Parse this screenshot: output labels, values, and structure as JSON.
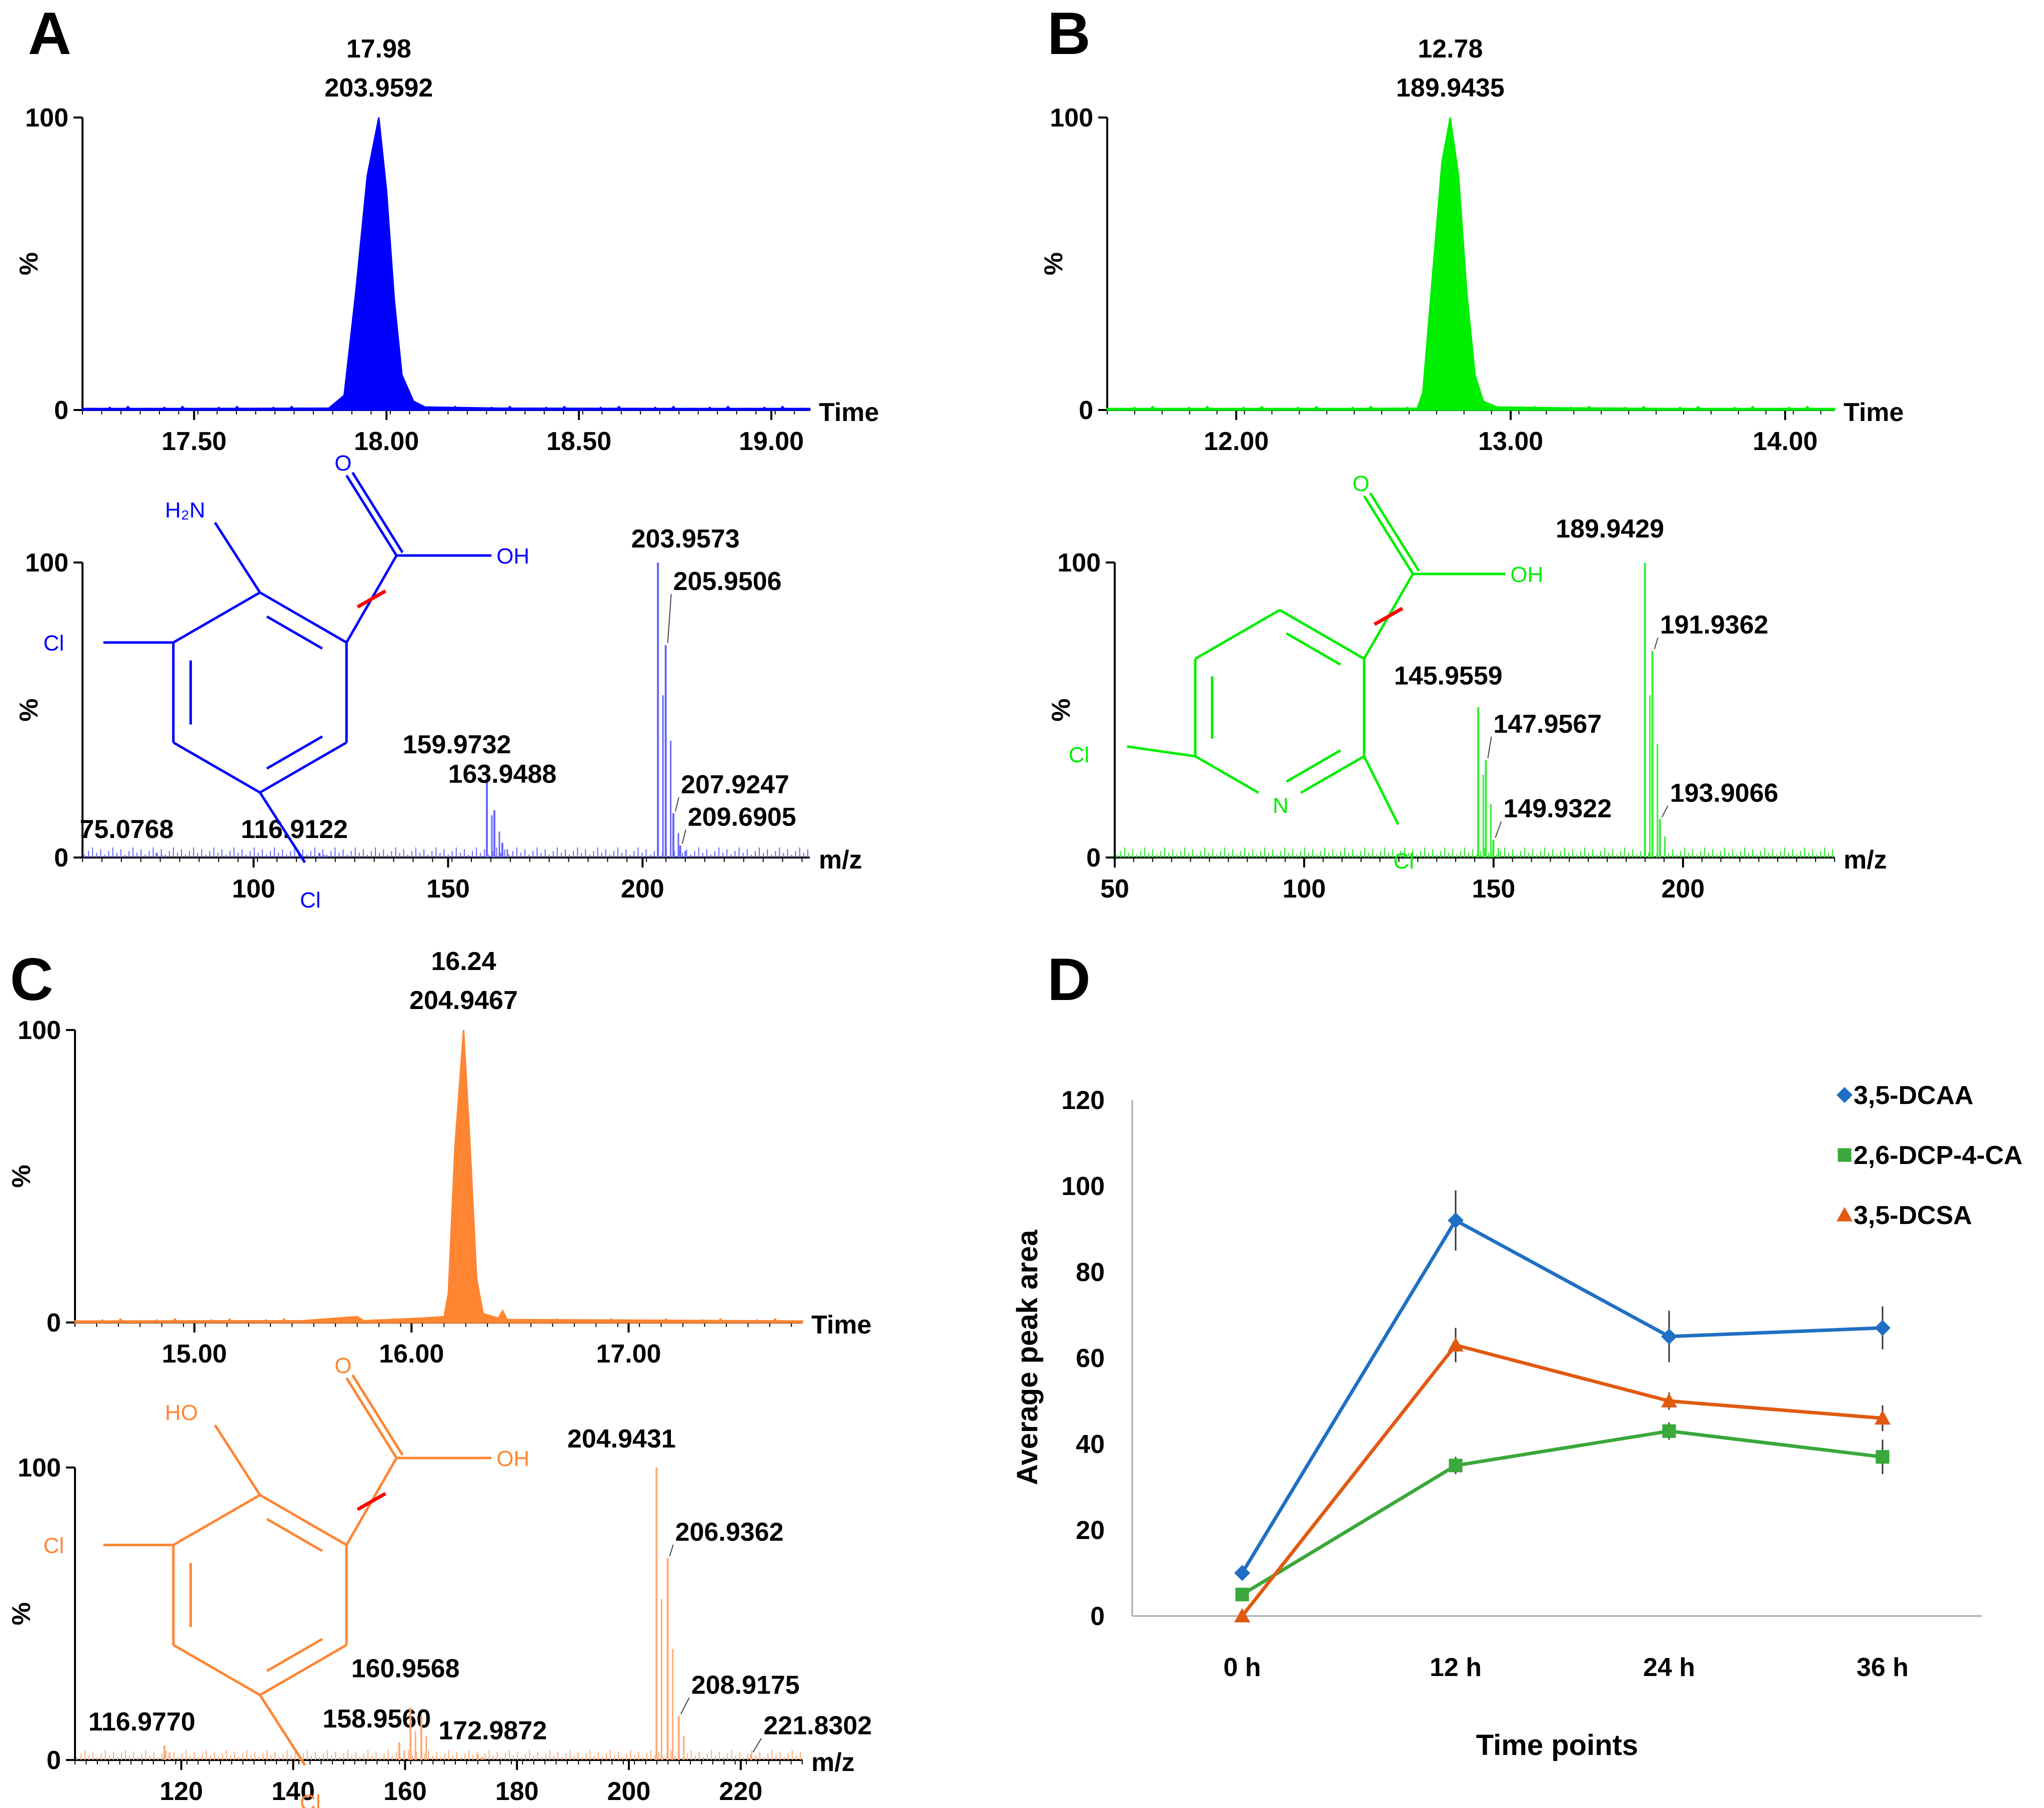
{
  "panel_labels": {
    "a": "A",
    "b": "B",
    "c": "C",
    "d": "D"
  },
  "colors": {
    "a": "#0000ff",
    "b": "#00ee00",
    "c": "#ff8533",
    "a_spec": "#6666ff",
    "b_spec": "#33ee33",
    "c_spec": "#ffaa77",
    "cut": "#ff0000",
    "axis": "#000000"
  },
  "chart_data": [
    {
      "id": "A-chromatogram",
      "type": "area",
      "title": "17.98",
      "subtitle": "203.9592",
      "xlabel": "Time",
      "ylabel": "%",
      "xlim": [
        17.21,
        19.1
      ],
      "ylim": [
        0,
        100
      ],
      "xticks": [
        "17.50",
        "18.00",
        "18.50",
        "19.00"
      ],
      "yticks": [
        "0",
        "100"
      ],
      "peak": {
        "x": 17.98,
        "y": 100
      },
      "points": [
        [
          17.21,
          0.5
        ],
        [
          17.5,
          0.5
        ],
        [
          17.85,
          0.6
        ],
        [
          17.89,
          5
        ],
        [
          17.92,
          40
        ],
        [
          17.95,
          80
        ],
        [
          17.98,
          100
        ],
        [
          18.0,
          75
        ],
        [
          18.02,
          38
        ],
        [
          18.04,
          12
        ],
        [
          18.07,
          3
        ],
        [
          18.1,
          1
        ],
        [
          18.3,
          0.6
        ],
        [
          18.7,
          0.5
        ],
        [
          19.1,
          0.5
        ]
      ]
    },
    {
      "id": "A-spectrum",
      "type": "bar",
      "xlabel": "m/z",
      "ylabel": "%",
      "xlim": [
        56,
        243
      ],
      "ylim": [
        0,
        100
      ],
      "xticks": [
        "100",
        "150",
        "200"
      ],
      "yticks": [
        "0",
        "100"
      ],
      "peaks": [
        {
          "mz": 75.0768,
          "y": 1.5,
          "label": "75.0768"
        },
        {
          "mz": 116.9122,
          "y": 1.5,
          "label": "116.9122"
        },
        {
          "mz": 159.9732,
          "y": 26,
          "label": "159.9732"
        },
        {
          "mz": 161.9,
          "y": 16
        },
        {
          "mz": 163.9488,
          "y": 5,
          "label": "163.9488"
        },
        {
          "mz": 203.9573,
          "y": 100,
          "label": "203.9573"
        },
        {
          "mz": 205.9506,
          "y": 72,
          "label": "205.9506"
        },
        {
          "mz": 207.9247,
          "y": 15,
          "label": "207.9247"
        },
        {
          "mz": 209.6905,
          "y": 4,
          "label": "209.6905"
        }
      ],
      "structure": {
        "labels": [
          "O",
          "H₂N",
          "OH",
          "Cl",
          "Cl"
        ]
      }
    },
    {
      "id": "B-chromatogram",
      "type": "area",
      "title": "12.78",
      "subtitle": "189.9435",
      "xlabel": "Time",
      "ylabel": "%",
      "xlim": [
        11.53,
        14.18
      ],
      "ylim": [
        0,
        100
      ],
      "xticks": [
        "12.00",
        "13.00",
        "14.00"
      ],
      "yticks": [
        "0",
        "100"
      ],
      "peak": {
        "x": 12.78,
        "y": 100
      },
      "points": [
        [
          11.53,
          0.5
        ],
        [
          12.4,
          0.5
        ],
        [
          12.66,
          0.6
        ],
        [
          12.68,
          6
        ],
        [
          12.71,
          40
        ],
        [
          12.75,
          85
        ],
        [
          12.78,
          100
        ],
        [
          12.81,
          80
        ],
        [
          12.84,
          40
        ],
        [
          12.87,
          12
        ],
        [
          12.9,
          3
        ],
        [
          12.95,
          1
        ],
        [
          13.2,
          0.7
        ],
        [
          13.6,
          0.5
        ],
        [
          14.18,
          0.5
        ]
      ]
    },
    {
      "id": "B-spectrum",
      "type": "bar",
      "xlabel": "m/z",
      "ylabel": "%",
      "xlim": [
        50,
        240
      ],
      "ylim": [
        0,
        100
      ],
      "xticks": [
        "50",
        "100",
        "150",
        "200"
      ],
      "yticks": [
        "0",
        "100"
      ],
      "peaks": [
        {
          "mz": 145.9559,
          "y": 51,
          "label": "145.9559"
        },
        {
          "mz": 147.9567,
          "y": 33,
          "label": "147.9567"
        },
        {
          "mz": 149.9322,
          "y": 6,
          "label": "149.9322"
        },
        {
          "mz": 189.9429,
          "y": 100,
          "label": "189.9429"
        },
        {
          "mz": 191.9362,
          "y": 70,
          "label": "191.9362"
        },
        {
          "mz": 193.9066,
          "y": 13,
          "label": "193.9066"
        }
      ],
      "structure": {
        "labels": [
          "O",
          "OH",
          "Cl",
          "N",
          "Cl"
        ]
      }
    },
    {
      "id": "C-chromatogram",
      "type": "area",
      "title": "16.24",
      "subtitle": "204.9467",
      "xlabel": "Time",
      "ylabel": "%",
      "xlim": [
        14.45,
        17.8
      ],
      "ylim": [
        0,
        100
      ],
      "xticks": [
        "15.00",
        "16.00",
        "17.00"
      ],
      "yticks": [
        "0",
        "100"
      ],
      "peak": {
        "x": 16.24,
        "y": 100
      },
      "points": [
        [
          14.45,
          0.5
        ],
        [
          15.5,
          0.6
        ],
        [
          15.75,
          2
        ],
        [
          15.78,
          0.6
        ],
        [
          16.05,
          1.5
        ],
        [
          16.15,
          2
        ],
        [
          16.17,
          10
        ],
        [
          16.2,
          60
        ],
        [
          16.24,
          100
        ],
        [
          16.27,
          60
        ],
        [
          16.3,
          15
        ],
        [
          16.33,
          3
        ],
        [
          16.4,
          1.5
        ],
        [
          16.42,
          4
        ],
        [
          16.44,
          1
        ],
        [
          17.0,
          0.8
        ],
        [
          17.8,
          0.5
        ]
      ]
    },
    {
      "id": "C-spectrum",
      "type": "bar",
      "xlabel": "m/z",
      "ylabel": "%",
      "xlim": [
        101,
        231
      ],
      "ylim": [
        0,
        100
      ],
      "xticks": [
        "120",
        "140",
        "160",
        "180",
        "200",
        "220"
      ],
      "yticks": [
        "0",
        "100"
      ],
      "peaks": [
        {
          "mz": 116.977,
          "y": 5,
          "label": "116.9770"
        },
        {
          "mz": 158.956,
          "y": 6,
          "label": "158.9560"
        },
        {
          "mz": 160.9568,
          "y": 18,
          "label": "160.9568"
        },
        {
          "mz": 162.9,
          "y": 15
        },
        {
          "mz": 172.9872,
          "y": 2,
          "label": "172.9872"
        },
        {
          "mz": 204.9431,
          "y": 100,
          "label": "204.9431"
        },
        {
          "mz": 206.9362,
          "y": 69,
          "label": "206.9362"
        },
        {
          "mz": 208.9175,
          "y": 15,
          "label": "208.9175"
        },
        {
          "mz": 221.8302,
          "y": 2,
          "label": "221.8302"
        }
      ],
      "structure": {
        "labels": [
          "O",
          "HO",
          "OH",
          "Cl",
          "Cl"
        ]
      }
    },
    {
      "id": "D-line",
      "type": "line",
      "xlabel": "Time points",
      "ylabel": "Average peak area",
      "categories": [
        "0 h",
        "12 h",
        "24 h",
        "36 h"
      ],
      "ylim": [
        0,
        120
      ],
      "yticks": [
        "0",
        "20",
        "40",
        "60",
        "80",
        "100",
        "120"
      ],
      "legend_position": "top-right",
      "series": [
        {
          "name": "3,5-DCAA",
          "color": "#1f6fc4",
          "marker": "diamond",
          "values": [
            10,
            92,
            65,
            67
          ],
          "errors": [
            0,
            7,
            6,
            5
          ]
        },
        {
          "name": "2,6-DCP-4-CA",
          "color": "#3aa83a",
          "marker": "square",
          "values": [
            5,
            35,
            43,
            37
          ],
          "errors": [
            0,
            2,
            2,
            4
          ]
        },
        {
          "name": "3,5-DCSA",
          "color": "#e05a10",
          "marker": "triangle",
          "values": [
            0,
            63,
            50,
            46
          ],
          "errors": [
            0,
            4,
            2,
            3
          ]
        }
      ]
    }
  ]
}
